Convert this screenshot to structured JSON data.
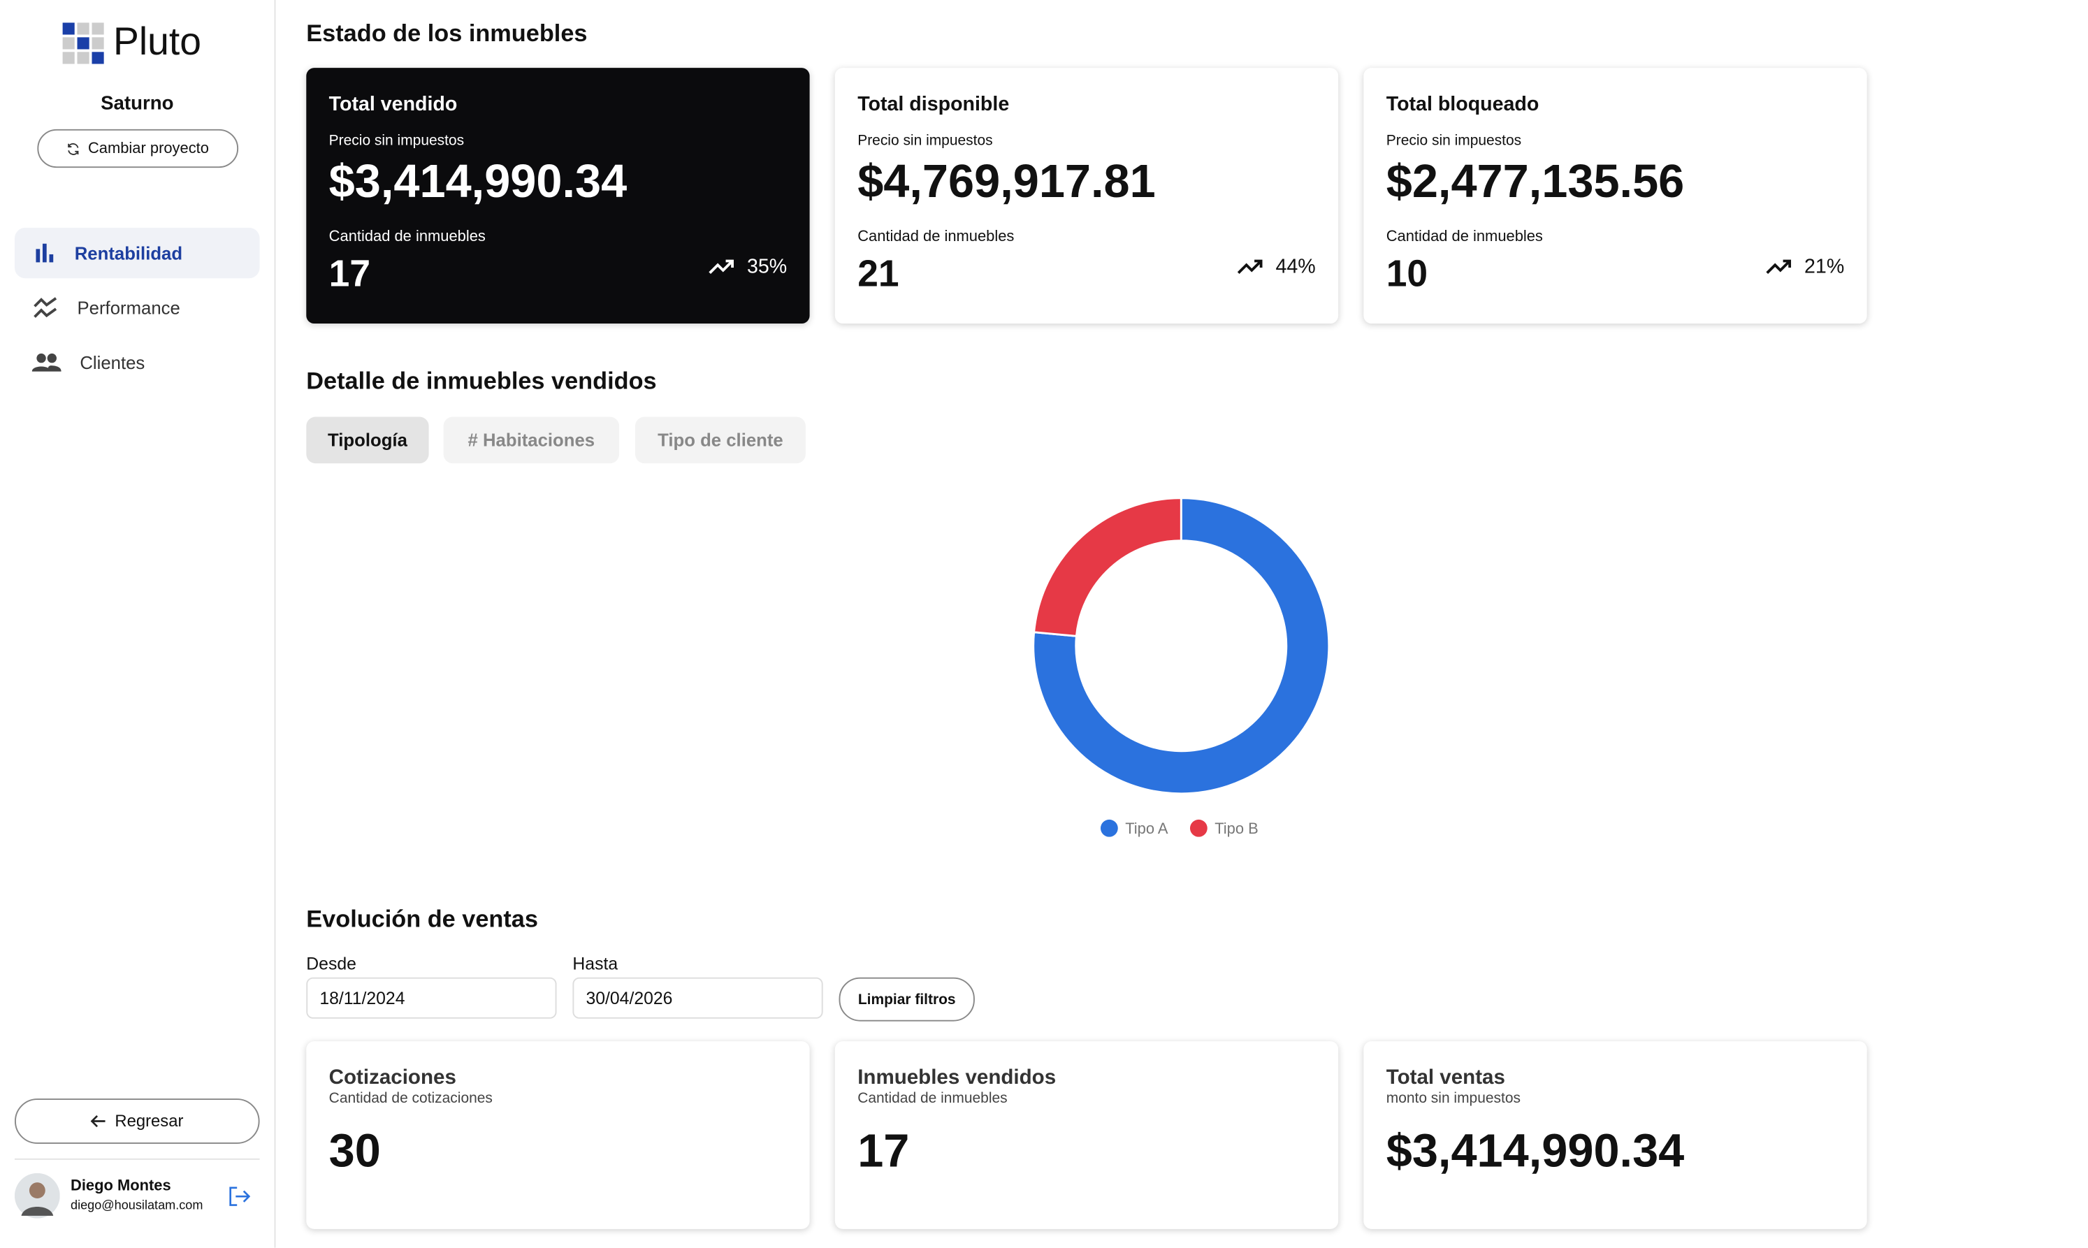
{
  "sidebar": {
    "brand": "Pluto",
    "project": "Saturno",
    "change_project": "Cambiar proyecto",
    "nav": [
      "Rentabilidad",
      "Performance",
      "Clientes"
    ],
    "back": "Regresar",
    "user": {
      "name": "Diego Montes",
      "email": "diego@housilatam.com"
    }
  },
  "status": {
    "title": "Estado de los inmuebles",
    "cards": [
      {
        "title": "Total vendido",
        "price_label": "Precio sin impuestos",
        "price": "$3,414,990.34",
        "count_label": "Cantidad de inmuebles",
        "count": 17,
        "change": "35%"
      },
      {
        "title": "Total disponible",
        "price_label": "Precio sin impuestos",
        "price": "$4,769,917.81",
        "count_label": "Cantidad de inmuebles",
        "count": 21,
        "change": "44%"
      },
      {
        "title": "Total bloqueado",
        "price_label": "Precio sin impuestos",
        "price": "$2,477,135.56",
        "count_label": "Cantidad de inmuebles",
        "count": 10,
        "change": "21%"
      }
    ]
  },
  "detail": {
    "title": "Detalle de inmuebles vendidos",
    "tabs": [
      "Tipología",
      "# Habitaciones",
      "Tipo de cliente"
    ]
  },
  "chart_data": {
    "type": "donut",
    "categories": [
      "Tipo A",
      "Tipo B"
    ],
    "values": [
      13,
      4
    ],
    "colors": [
      "#2b72de",
      "#e63946"
    ]
  },
  "evolution": {
    "title": "Evolución de ventas",
    "from_label": "Desde",
    "from": "18/11/2024",
    "to_label": "Hasta",
    "to": "30/04/2026",
    "clear": "Limpiar filtros",
    "cards": [
      {
        "title": "Cotizaciones",
        "subtitle": "Cantidad de cotizaciones",
        "value": 30
      },
      {
        "title": "Inmuebles vendidos",
        "subtitle": "Cantidad de inmuebles",
        "value": 17
      },
      {
        "title": "Total ventas",
        "subtitle": "monto sin impuestos",
        "value": "$3,414,990.34"
      }
    ]
  }
}
